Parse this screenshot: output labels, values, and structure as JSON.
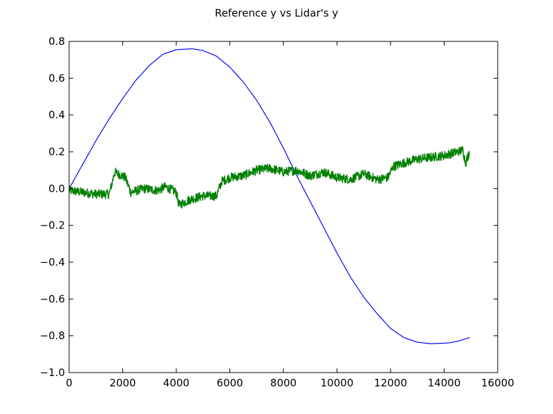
{
  "chart_data": {
    "type": "line",
    "title": "Reference y vs Lidar's y",
    "xlabel": "",
    "ylabel": "",
    "xlim": [
      0,
      16000
    ],
    "ylim": [
      -1.0,
      0.8
    ],
    "grid": false,
    "x_ticks": [
      0,
      2000,
      4000,
      6000,
      8000,
      10000,
      12000,
      14000,
      16000
    ],
    "x_tick_labels": [
      "0",
      "2000",
      "4000",
      "6000",
      "8000",
      "10000",
      "12000",
      "14000",
      "16000"
    ],
    "y_ticks": [
      -1.0,
      -0.8,
      -0.6,
      -0.4,
      -0.2,
      0.0,
      0.2,
      0.4,
      0.6,
      0.8
    ],
    "y_tick_labels": [
      "−1.0",
      "−0.8",
      "−0.6",
      "−0.4",
      "−0.2",
      "0.0",
      "0.2",
      "0.4",
      "0.6",
      "0.8"
    ],
    "series": [
      {
        "color": "#0000ff",
        "x": [
          0,
          500,
          1000,
          1500,
          2000,
          2500,
          3000,
          3500,
          4000,
          4600,
          5000,
          5500,
          6000,
          6500,
          7000,
          7500,
          8000,
          8500,
          9000,
          9500,
          10000,
          10500,
          11000,
          11500,
          12000,
          12500,
          13000,
          13500,
          14000,
          14200,
          14500,
          14950
        ],
        "y": [
          0.0,
          0.13,
          0.26,
          0.38,
          0.49,
          0.59,
          0.67,
          0.73,
          0.755,
          0.76,
          0.75,
          0.72,
          0.66,
          0.58,
          0.48,
          0.36,
          0.22,
          0.07,
          -0.07,
          -0.21,
          -0.35,
          -0.48,
          -0.59,
          -0.68,
          -0.76,
          -0.81,
          -0.835,
          -0.843,
          -0.84,
          -0.838,
          -0.83,
          -0.81
        ]
      },
      {
        "color": "#008000",
        "x": [
          0,
          500,
          1000,
          1500,
          1700,
          2100,
          2300,
          2800,
          3300,
          3600,
          4000,
          4100,
          4500,
          5000,
          5500,
          5700,
          6000,
          6500,
          7000,
          7500,
          8000,
          8500,
          9000,
          9500,
          10000,
          10500,
          11000,
          11500,
          11900,
          12100,
          12500,
          13000,
          13500,
          14000,
          14500,
          14700,
          14800,
          14950
        ],
        "y": [
          -0.01,
          -0.02,
          -0.03,
          -0.03,
          0.09,
          0.06,
          -0.02,
          0.0,
          -0.01,
          0.01,
          -0.02,
          -0.09,
          -0.06,
          -0.04,
          -0.04,
          0.04,
          0.06,
          0.07,
          0.1,
          0.11,
          0.09,
          0.1,
          0.07,
          0.09,
          0.06,
          0.05,
          0.08,
          0.05,
          0.06,
          0.12,
          0.14,
          0.16,
          0.17,
          0.18,
          0.2,
          0.21,
          0.14,
          0.2
        ]
      }
    ]
  }
}
